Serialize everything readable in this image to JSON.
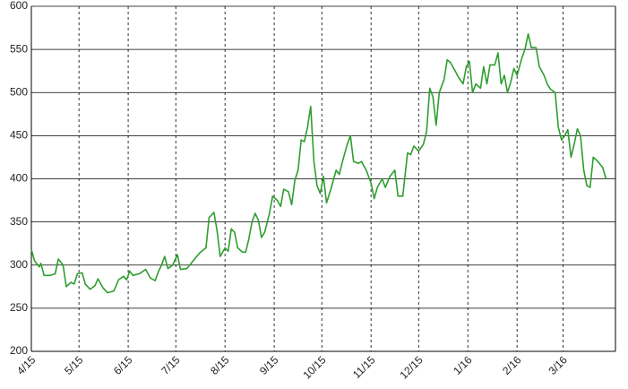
{
  "chart_data": {
    "type": "line",
    "x": [
      0,
      2,
      5,
      6,
      8,
      12,
      15,
      17,
      20,
      22,
      25,
      27,
      29,
      32,
      34,
      37,
      40,
      42,
      45,
      48,
      52,
      55,
      58,
      60,
      62,
      64,
      68,
      72,
      75,
      78,
      80,
      82,
      84,
      86,
      89,
      92,
      94,
      98,
      102,
      106,
      110,
      112,
      115,
      117,
      119,
      122,
      124,
      126,
      128,
      130,
      133,
      135,
      137,
      139,
      141,
      143,
      145,
      147,
      150,
      152,
      155,
      157,
      159,
      162,
      164,
      166,
      168,
      170,
      172,
      174,
      176,
      178,
      180,
      182,
      184,
      186,
      189,
      192,
      194,
      196,
      199,
      201,
      203,
      206,
      208,
      211,
      214,
      216,
      218,
      221,
      223,
      226,
      229,
      231,
      234,
      237,
      239,
      241,
      244,
      247,
      249,
      251,
      253,
      255,
      257,
      260,
      262,
      264,
      267,
      269,
      272,
      274,
      276,
      278,
      280,
      283,
      285,
      287,
      289,
      292,
      294,
      296,
      298,
      300,
      302,
      304,
      306,
      309,
      311,
      313,
      315,
      318,
      320,
      323,
      325,
      327,
      330,
      332,
      334,
      336,
      338,
      340,
      342,
      344,
      346,
      348,
      350,
      352,
      354,
      357,
      360,
      362
    ],
    "series": [
      {
        "color": "#2e9e2e",
        "values": [
          318,
          305,
          298,
          302,
          288,
          288,
          290,
          307,
          300,
          275,
          280,
          278,
          290,
          291,
          278,
          272,
          276,
          284,
          274,
          268,
          270,
          283,
          287,
          283,
          293,
          288,
          290,
          295,
          285,
          282,
          292,
          300,
          310,
          296,
          300,
          312,
          295,
          296,
          305,
          314,
          320,
          355,
          361,
          340,
          310,
          320,
          316,
          342,
          338,
          320,
          315,
          315,
          330,
          350,
          360,
          352,
          332,
          338,
          360,
          380,
          375,
          368,
          388,
          385,
          370,
          398,
          410,
          445,
          443,
          460,
          484,
          420,
          392,
          383,
          403,
          372,
          390,
          410,
          405,
          420,
          440,
          450,
          420,
          418,
          420,
          410,
          395,
          377,
          390,
          400,
          390,
          403,
          410,
          380,
          380,
          430,
          428,
          438,
          432,
          440,
          455,
          505,
          495,
          462,
          500,
          515,
          538,
          535,
          525,
          518,
          510,
          530,
          536,
          500,
          510,
          505,
          530,
          510,
          532,
          532,
          546,
          510,
          520,
          500,
          512,
          528,
          520,
          540,
          550,
          568,
          552,
          552,
          530,
          520,
          510,
          504,
          500,
          460,
          445,
          450,
          457,
          425,
          440,
          458,
          450,
          410,
          392,
          390,
          425,
          420,
          413,
          400
        ]
      }
    ],
    "xlim": [
      0,
      368
    ],
    "xticks": [
      {
        "value": 0,
        "label": "4/15"
      },
      {
        "value": 30,
        "label": "5/15"
      },
      {
        "value": 61,
        "label": "6/15"
      },
      {
        "value": 91,
        "label": "7/15"
      },
      {
        "value": 122,
        "label": "8/15"
      },
      {
        "value": 153,
        "label": "9/15"
      },
      {
        "value": 183,
        "label": "10/15"
      },
      {
        "value": 214,
        "label": "11/15"
      },
      {
        "value": 244,
        "label": "12/15"
      },
      {
        "value": 275,
        "label": "1/16"
      },
      {
        "value": 306,
        "label": "2/16"
      },
      {
        "value": 335,
        "label": "3/16"
      }
    ],
    "ylim": [
      200,
      600
    ],
    "yticks": [
      200,
      250,
      300,
      350,
      400,
      450,
      500,
      550,
      600
    ],
    "grid": true
  }
}
